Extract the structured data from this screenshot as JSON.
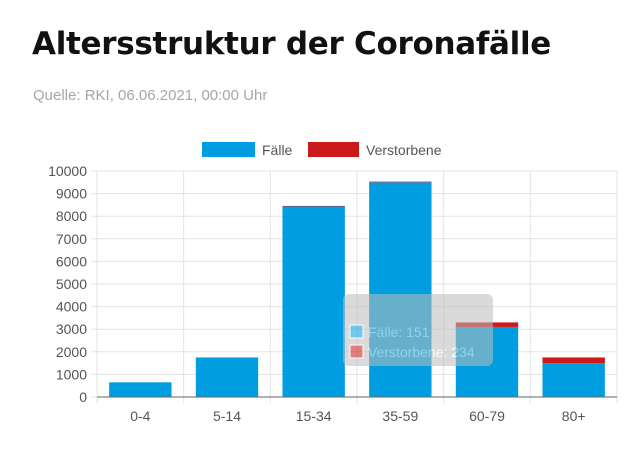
{
  "title": "Altersstruktur der Coronafälle",
  "subtitle": "Quelle: RKI, 06.06.2021, 00:00 Uhr",
  "colors": {
    "faelle": "#009ee0",
    "verstorbene": "#cc1a1a",
    "grid": "#e3e3e3",
    "axis": "#666666"
  },
  "tooltip": {
    "line1": "Fälle: 151",
    "line2": "Verstorbene: 234"
  },
  "chart_data": {
    "type": "bar",
    "stacked": true,
    "categories": [
      "0-4",
      "5-14",
      "15-34",
      "35-59",
      "60-79",
      "80+"
    ],
    "series": [
      {
        "name": "Fälle",
        "values": [
          650,
          1750,
          8450,
          9500,
          3100,
          1500
        ]
      },
      {
        "name": "Verstorbene",
        "values": [
          0,
          0,
          5,
          30,
          200,
          250
        ]
      }
    ],
    "yticks": [
      0,
      1000,
      2000,
      3000,
      4000,
      5000,
      6000,
      7000,
      8000,
      9000,
      10000
    ],
    "ylim": [
      0,
      10000
    ],
    "grid": true,
    "legend": "top-center"
  }
}
